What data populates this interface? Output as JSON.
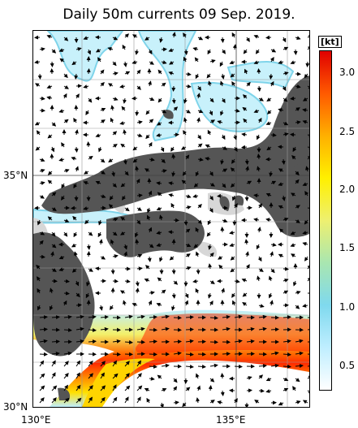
{
  "title": "Daily 50m currents 09 Sep. 2019.",
  "lat_labels": [
    "35°N",
    "30°N"
  ],
  "lon_labels": [
    "130°E",
    "135°E"
  ],
  "colorbar": {
    "unit": "[kt]",
    "ticks": [
      "3.0",
      "2.5",
      "2.0",
      "1.5",
      "1.0",
      "0.5"
    ],
    "min": 0.2,
    "max": 3.3,
    "colors": [
      "#ffffff",
      "#bfeeff",
      "#7fd9ee",
      "#a9e6b0",
      "#eef070",
      "#fff000",
      "#ffb000",
      "#ff5a00",
      "#e00000"
    ]
  },
  "colors": {
    "land": "#555555",
    "shallow": "#d7d7d7",
    "current_weak": "#c8f1fb",
    "current_mid": "#7fd4ea",
    "current_strong": "#ffd400",
    "current_core": "#ff2a00"
  }
}
